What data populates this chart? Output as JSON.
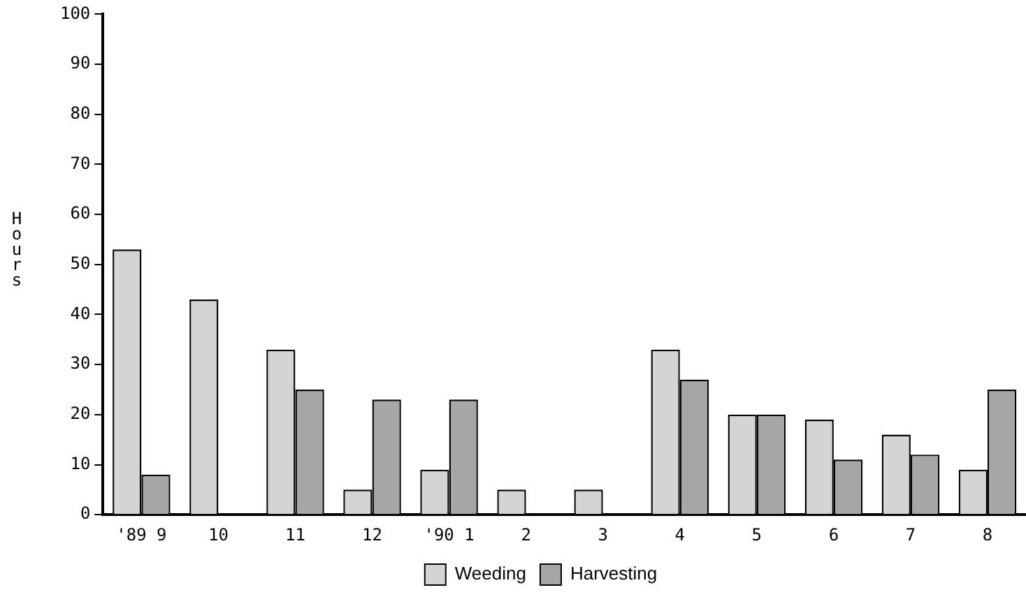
{
  "chart_data": {
    "type": "bar",
    "ylabel": "Hours",
    "categories": [
      "'89 9",
      "10",
      "11",
      "12",
      "'90 1",
      "2",
      "3",
      "4",
      "5",
      "6",
      "7",
      "8"
    ],
    "series": [
      {
        "name": "Weeding",
        "color": "#d4d4d4",
        "values": [
          53,
          43,
          33,
          5,
          9,
          5,
          5,
          33,
          20,
          19,
          16,
          9
        ]
      },
      {
        "name": "Harvesting",
        "color": "#a6a6a6",
        "values": [
          8,
          null,
          25,
          23,
          23,
          null,
          null,
          27,
          20,
          11,
          12,
          25
        ]
      }
    ],
    "ylim": [
      0,
      100
    ],
    "yticks": [
      0,
      10,
      20,
      30,
      40,
      50,
      60,
      70,
      80,
      90,
      100
    ],
    "grid": false,
    "legend": "bottom"
  }
}
